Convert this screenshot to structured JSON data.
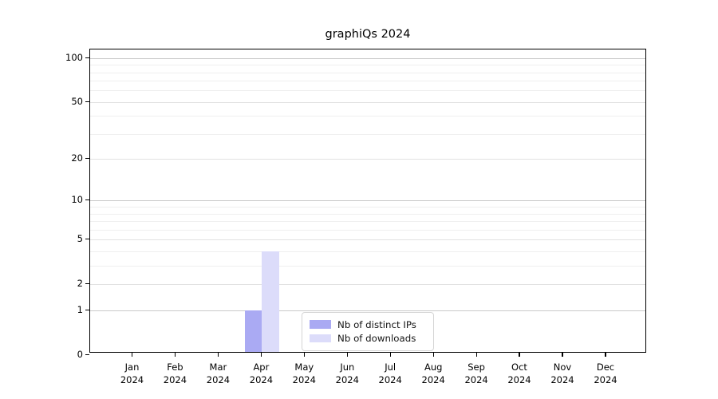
{
  "title": "graphiQs 2024",
  "chart_data": {
    "type": "bar",
    "title": "graphiQs 2024",
    "categories": [
      "Jan",
      "Feb",
      "Mar",
      "Apr",
      "May",
      "Jun",
      "Jul",
      "Aug",
      "Sep",
      "Oct",
      "Nov",
      "Dec"
    ],
    "category_year": "2024",
    "series": [
      {
        "name": "Nb of distinct IPs",
        "color": "#aaaaf3",
        "values": [
          0,
          0,
          0,
          1,
          0,
          0,
          0,
          0,
          0,
          0,
          0,
          0
        ]
      },
      {
        "name": "Nb of downloads",
        "color": "#dcdcfa",
        "values": [
          0,
          0,
          0,
          4,
          0,
          0,
          0,
          0,
          0,
          0,
          0,
          0
        ]
      }
    ],
    "yscale": "log1p",
    "ylim": [
      0,
      115
    ],
    "y_ticks": [
      0,
      1,
      2,
      5,
      10,
      20,
      50,
      100
    ],
    "y_minor_ticks": [
      3,
      4,
      6,
      7,
      8,
      9,
      30,
      40,
      60,
      70,
      80,
      90
    ],
    "y_emphasis_ticks": [
      1,
      10,
      100
    ],
    "grid": "horizontal",
    "legend_position": "lower center",
    "axis_color": "#000000",
    "grid_major_color": "#c9c9c9",
    "grid_mid_color": "#e2e2e2",
    "grid_minor_color": "#efefef"
  }
}
